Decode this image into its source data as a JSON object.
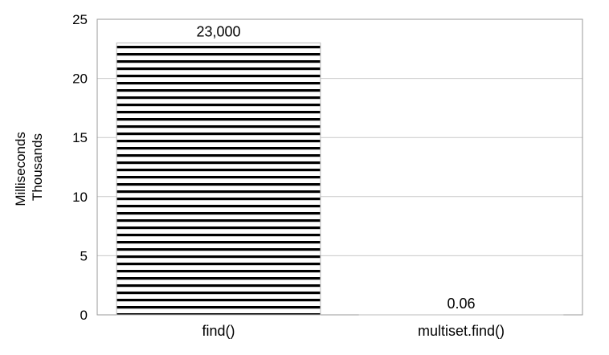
{
  "chart_data": {
    "type": "bar",
    "categories": [
      "find()",
      "multiset.find()"
    ],
    "values": [
      23.0,
      6e-05
    ],
    "data_labels": [
      "23,000",
      "0.06"
    ],
    "ylabel_lines": [
      "Milliseconds",
      "Thousands"
    ],
    "xlabel": "",
    "ylim": [
      0,
      25
    ],
    "yticks": [
      0,
      5,
      10,
      15,
      20,
      25
    ],
    "grid": true,
    "legend": "none",
    "bar_pattern": "horizontal-stripes",
    "colors": {
      "bar_stripe": "#000000",
      "bar_fill": "#ffffff",
      "grid": "#c8c8c8",
      "axis": "#999999"
    }
  }
}
